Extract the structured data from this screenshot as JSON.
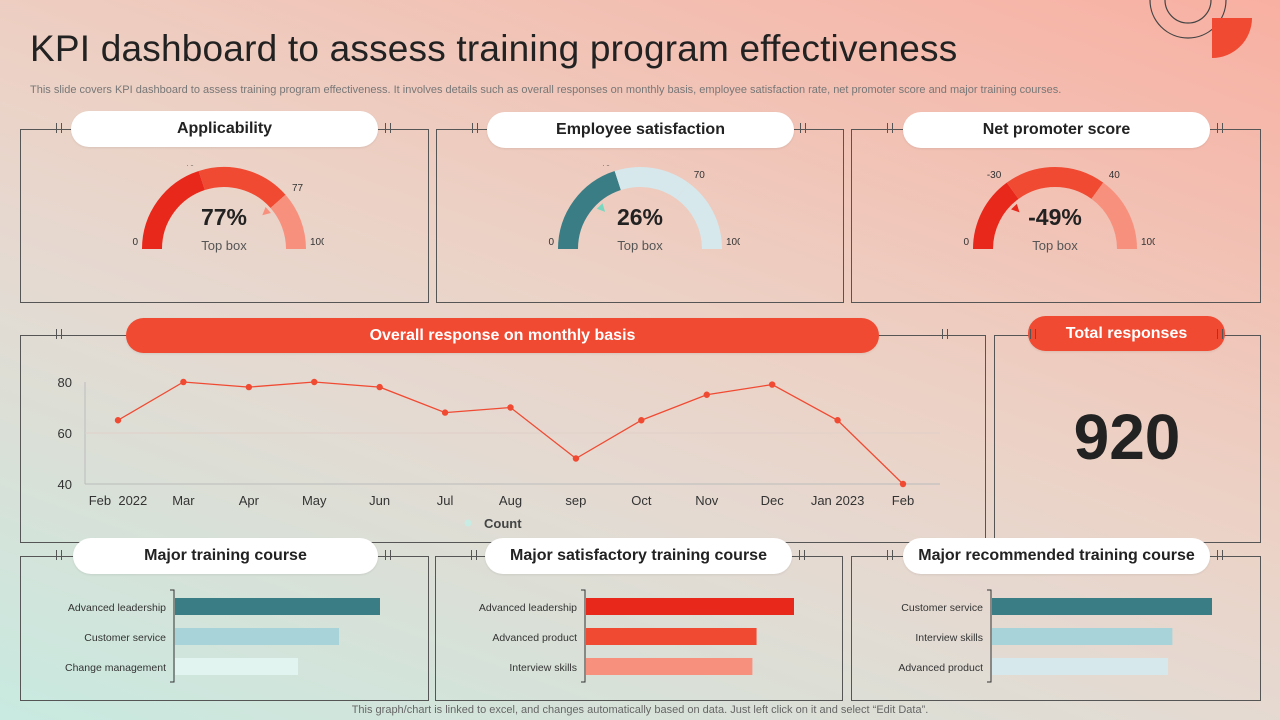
{
  "header": {
    "title": "KPI dashboard to assess training program effectiveness",
    "subtitle": "This slide covers KPI dashboard to assess training program effectiveness. It involves details such as overall responses on monthly basis, employee satisfaction rate, net promoter score and major training courses."
  },
  "footer": {
    "note": "This graph/chart is linked to excel, and changes automatically based on data. Just left click on it and select “Edit Data”."
  },
  "colors": {
    "red": "#e8281a",
    "coral": "#f04a32",
    "salmon": "#f7917e",
    "teal": "#3a7d85",
    "lightblue": "#d6e8ec",
    "paleteal": "#a8d3d8"
  },
  "gauges": [
    {
      "title": "Applicability",
      "value": "77%",
      "label": "Top box",
      "min": "0",
      "max": "100",
      "t1": "40",
      "t2": "77",
      "f1": 0.4,
      "f2": 0.77,
      "marker": 0.77,
      "c1": "#e8281a",
      "c2": "#f04a32",
      "c3": "#f7917e",
      "markerColor": "#f7917e"
    },
    {
      "title": "Employee satisfaction",
      "value": "26%",
      "label": "Top box",
      "min": "0",
      "max": "100",
      "t1": "40",
      "t2": "70",
      "f1": 0.4,
      "f2": 0.7,
      "marker": 0.26,
      "c1": "#3a7d85",
      "c2": "#d6e8ec",
      "c3": "#d6e8ec",
      "markerColor": "#7ad8c0"
    },
    {
      "title": "Net promoter score",
      "value": "-49%",
      "label": "Top box",
      "min": "0",
      "max": "100",
      "t1": "-30",
      "t2": "40",
      "f1": 0.3,
      "f2": 0.7,
      "marker": 0.255,
      "c1": "#e8281a",
      "c2": "#f04a32",
      "c3": "#f7917e",
      "markerColor": "#e8281a"
    }
  ],
  "monthly": {
    "title": "Overall response on monthly basis"
  },
  "total": {
    "title": "Total responses",
    "value": "920"
  },
  "bars": [
    {
      "title": "Major training course",
      "items": [
        {
          "label": "Advanced leadership",
          "value": 1.0,
          "color": "#3a7d85"
        },
        {
          "label": "Customer service",
          "value": 0.8,
          "color": "#a8d3d8"
        },
        {
          "label": "Change management",
          "value": 0.6,
          "color": "#e2f4f0"
        }
      ]
    },
    {
      "title": "Major satisfactory training course",
      "items": [
        {
          "label": "Advanced leadership",
          "value": 1.0,
          "color": "#e8281a"
        },
        {
          "label": "Advanced product",
          "value": 0.82,
          "color": "#f04a32"
        },
        {
          "label": "Interview skills",
          "value": 0.8,
          "color": "#f7917e"
        }
      ]
    },
    {
      "title": "Major recommended training course",
      "items": [
        {
          "label": "Customer service",
          "value": 1.0,
          "color": "#3a7d85"
        },
        {
          "label": "Interview skills",
          "value": 0.82,
          "color": "#a8d3d8"
        },
        {
          "label": "Advanced product",
          "value": 0.8,
          "color": "#d6e8ec"
        }
      ]
    }
  ],
  "chart_data": {
    "type": "line",
    "title": "Overall response on monthly basis",
    "categories": [
      "Feb  2022",
      "Mar",
      "Apr",
      "May",
      "Jun",
      "Jul",
      "Aug",
      "sep",
      "Oct",
      "Nov",
      "Dec",
      "Jan 2023",
      "Feb"
    ],
    "series": [
      {
        "name": "Count",
        "values": [
          65,
          80,
          78,
          80,
          78,
          68,
          70,
          50,
          65,
          75,
          79,
          65,
          40
        ]
      }
    ],
    "yticks": [
      "40",
      "60",
      "80"
    ],
    "ylim": [
      40,
      80
    ],
    "legend": "bottom"
  }
}
